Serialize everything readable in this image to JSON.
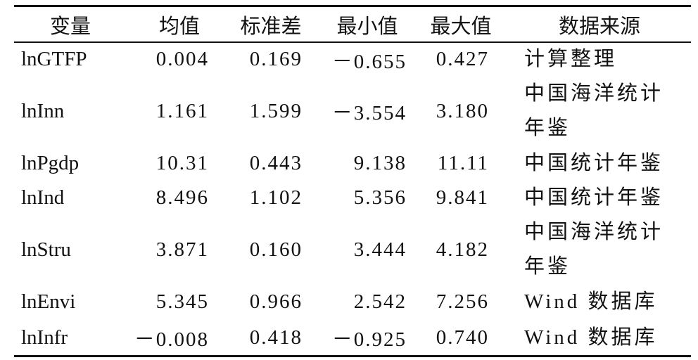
{
  "table": {
    "header": [
      "变量",
      "均值",
      "标准差",
      "最小值",
      "最大值",
      "数据来源"
    ],
    "rows": [
      [
        "lnGTFP",
        "0.004",
        "0.169",
        "－0.655",
        "0.427",
        "计算整理"
      ],
      [
        "lnInn",
        "1.161",
        "1.599",
        "－3.554",
        "3.180",
        "中国海洋统计年鉴"
      ],
      [
        "lnPgdp",
        "10.31",
        "0.443",
        "9.138",
        "11.11",
        "中国统计年鉴"
      ],
      [
        "lnInd",
        "8.496",
        "1.102",
        "5.356",
        "9.841",
        "中国统计年鉴"
      ],
      [
        "lnStru",
        "3.871",
        "0.160",
        "3.444",
        "4.182",
        "中国海洋统计年鉴"
      ],
      [
        "lnEnvi",
        "5.345",
        "0.966",
        "2.542",
        "7.256",
        "Wind 数据库"
      ],
      [
        "lnInfr",
        "－0.008",
        "0.418",
        "－0.925",
        "0.740",
        "Wind 数据库"
      ]
    ]
  }
}
